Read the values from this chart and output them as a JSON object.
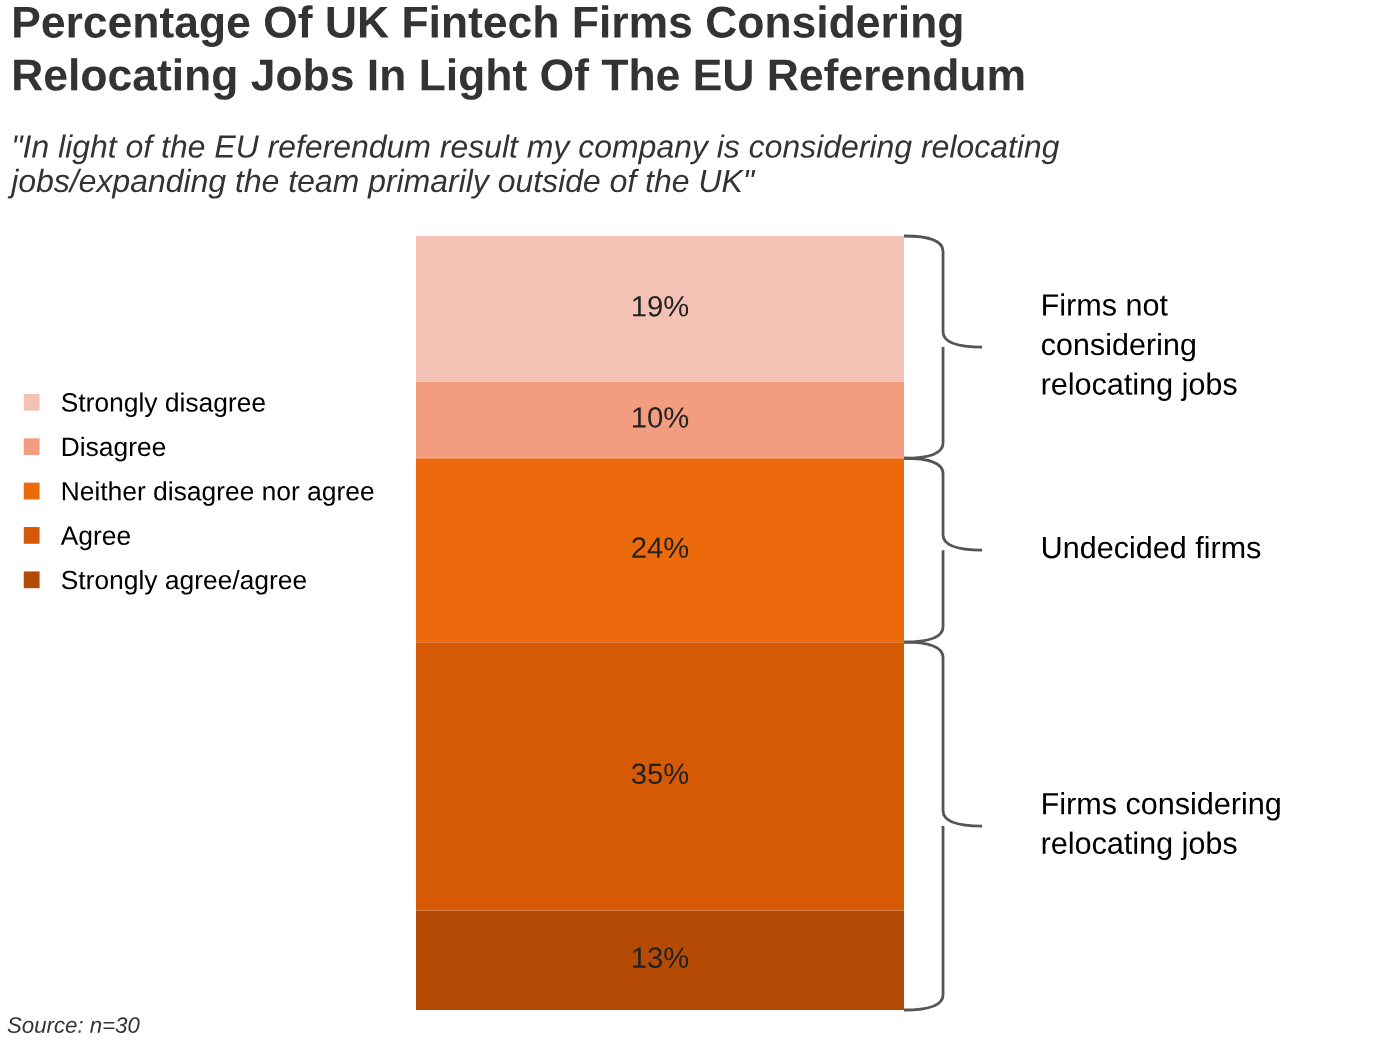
{
  "chart_data": {
    "type": "bar",
    "stacked": true,
    "title": "Percentage Of UK Fintech Firms Considering\nRelocating Jobs In Light Of The EU Referendum",
    "subtitle": "\"In light of the EU referendum result my company is considering relocating\njobs/expanding the team primarily outside of the UK\"",
    "categories": [
      null
    ],
    "series": [
      {
        "name": "Strongly agree/agree",
        "color": "#b54a04",
        "values": [
          13
        ],
        "value_labels": [
          "13%"
        ]
      },
      {
        "name": "Agree",
        "color": "#d65a06",
        "values": [
          35
        ],
        "value_labels": [
          "35%"
        ]
      },
      {
        "name": "Neither disagree nor agree",
        "color": "#ec6a0c",
        "values": [
          24
        ],
        "value_labels": [
          "24%"
        ]
      },
      {
        "name": "Disagree",
        "color": "#f29c80",
        "values": [
          10
        ],
        "value_labels": [
          "10%"
        ]
      },
      {
        "name": "Strongly disagree",
        "color": "#f4c2b4",
        "values": [
          19
        ],
        "value_labels": [
          "19%"
        ]
      }
    ],
    "legend": "left",
    "annotations": [
      "Firms considering\nrelocating jobs",
      "Undecided firms",
      "Firms not\nconsidering\nrelocating jobs",
      "Source: n=30"
    ]
  }
}
